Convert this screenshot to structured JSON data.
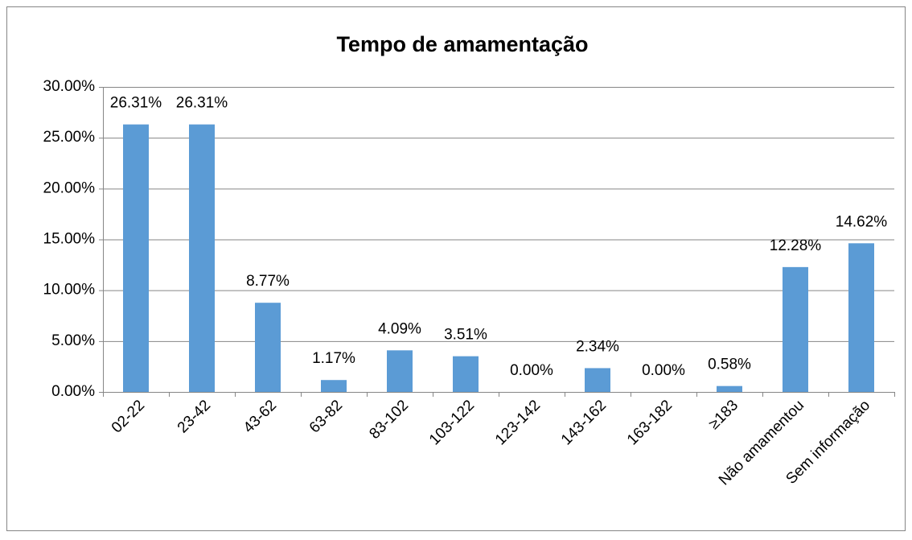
{
  "chart_data": {
    "type": "bar",
    "title": "Tempo de amamentação",
    "categories": [
      "02-22",
      "23-42",
      "43-62",
      "63-82",
      "83-102",
      "103-122",
      "123-142",
      "143-162",
      "163-182",
      "≥183",
      "Não amamentou",
      "Sem informação"
    ],
    "values": [
      26.31,
      26.31,
      8.77,
      1.17,
      4.09,
      3.51,
      0,
      2.34,
      0,
      0.58,
      12.28,
      14.62
    ],
    "value_labels": [
      "26.31%",
      "26.31%",
      "8.77%",
      "1.17%",
      "4.09%",
      "3.51%",
      "0.00%",
      "2.34%",
      "0.00%",
      "0.58%",
      "12.28%",
      "14.62%"
    ],
    "color": "#5b9bd5",
    "ylim": [
      0,
      30
    ],
    "yticks": [
      {
        "value": 0,
        "label": "0.00%"
      },
      {
        "value": 5,
        "label": "5.00%"
      },
      {
        "value": 10,
        "label": "10.00%"
      },
      {
        "value": 15,
        "label": "15.00%"
      },
      {
        "value": 20,
        "label": "20.00%"
      },
      {
        "value": 25,
        "label": "25.00%"
      },
      {
        "value": 30,
        "label": "30.00%"
      }
    ],
    "grid": true
  }
}
